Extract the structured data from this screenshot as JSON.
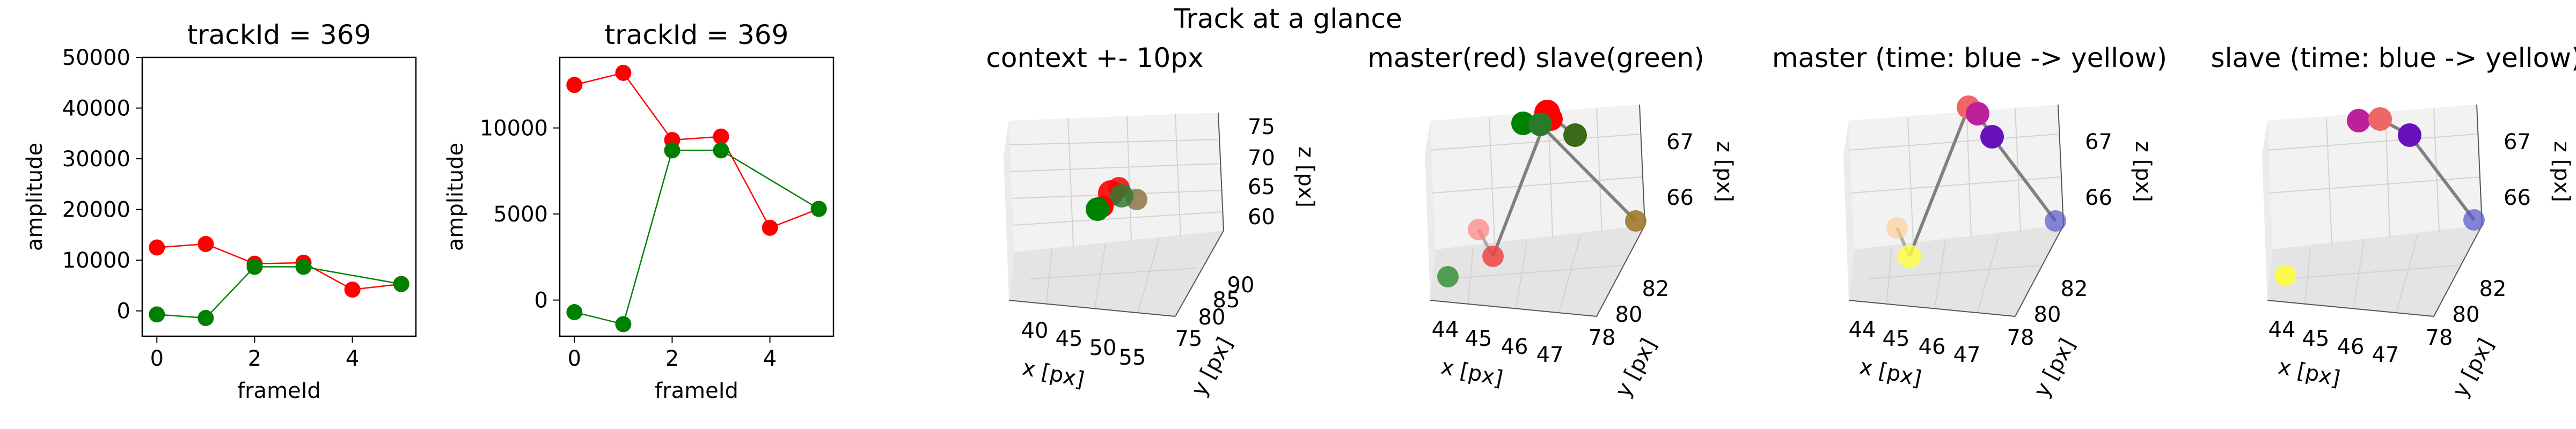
{
  "figure": {
    "suptitle": "Track at a glance"
  },
  "chart_data": [
    {
      "type": "line",
      "title": "trackId = 369",
      "xlabel": "frameId",
      "ylabel": "amplitude",
      "xlim": [
        -0.3,
        5.3
      ],
      "ylim": [
        -5000,
        50000
      ],
      "xticks": [
        0,
        1,
        2,
        3,
        4,
        5
      ],
      "xtick_labels": [
        "0",
        "2",
        "4"
      ],
      "xtick_values": [
        0,
        2,
        4
      ],
      "ytick_values": [
        0,
        10000,
        20000,
        30000,
        40000,
        50000
      ],
      "ytick_labels": [
        "0",
        "10000",
        "20000",
        "30000",
        "40000",
        "50000"
      ],
      "series": [
        {
          "color": "#ff0000",
          "x": [
            0,
            1,
            2,
            3,
            4,
            5
          ],
          "y": [
            12500,
            13200,
            9300,
            9500,
            4200,
            5300
          ]
        },
        {
          "color": "#008000",
          "x": [
            0,
            1,
            2,
            3,
            5
          ],
          "y": [
            -700,
            -1400,
            8700,
            8700,
            5300
          ]
        }
      ]
    },
    {
      "type": "line",
      "title": "trackId = 369",
      "xlabel": "frameId",
      "ylabel": "amplitude",
      "xlim": [
        -0.3,
        5.3
      ],
      "ylim": [
        -2100,
        14100
      ],
      "xtick_values": [
        0,
        2,
        4
      ],
      "xtick_labels": [
        "0",
        "2",
        "4"
      ],
      "ytick_values": [
        0,
        5000,
        10000
      ],
      "ytick_labels": [
        "0",
        "5000",
        "10000"
      ],
      "series": [
        {
          "color": "#ff0000",
          "x": [
            0,
            1,
            2,
            3,
            4,
            5
          ],
          "y": [
            12500,
            13200,
            9300,
            9500,
            4200,
            5300
          ]
        },
        {
          "color": "#008000",
          "x": [
            0,
            1,
            2,
            3,
            5
          ],
          "y": [
            -700,
            -1400,
            8700,
            8700,
            5300
          ]
        }
      ]
    },
    {
      "type": "scatter",
      "title": "context +- 10px",
      "xlabel": "x [px]",
      "ylabel": "y [px]",
      "zlabel": "z [px]",
      "xtick_labels": [
        "40",
        "45",
        "50",
        "55"
      ],
      "ytick_labels": [
        "75",
        "80",
        "85",
        "90"
      ],
      "ztick_labels": [
        "60",
        "65",
        "70",
        "75"
      ]
    },
    {
      "type": "scatter",
      "title": "master(red) slave(green)",
      "xlabel": "x [px]",
      "ylabel": "y [px]",
      "zlabel": "z [px]",
      "xtick_labels": [
        "44",
        "45",
        "46",
        "47"
      ],
      "ytick_labels": [
        "78",
        "80",
        "82"
      ],
      "ztick_labels": [
        "66",
        "67"
      ]
    },
    {
      "type": "scatter",
      "title": "master (time: blue -> yellow)",
      "xlabel": "x [px]",
      "ylabel": "y [px]",
      "zlabel": "z [px]",
      "xtick_labels": [
        "44",
        "45",
        "46",
        "47"
      ],
      "ytick_labels": [
        "78",
        "80",
        "82"
      ],
      "ztick_labels": [
        "66",
        "67"
      ]
    },
    {
      "type": "scatter",
      "title": "slave (time: blue -> yellow)",
      "xlabel": "x [px]",
      "ylabel": "y [px]",
      "zlabel": "z [px]",
      "xtick_labels": [
        "44",
        "45",
        "46",
        "47"
      ],
      "ytick_labels": [
        "78",
        "80",
        "82"
      ],
      "ztick_labels": [
        "66",
        "67"
      ]
    }
  ]
}
